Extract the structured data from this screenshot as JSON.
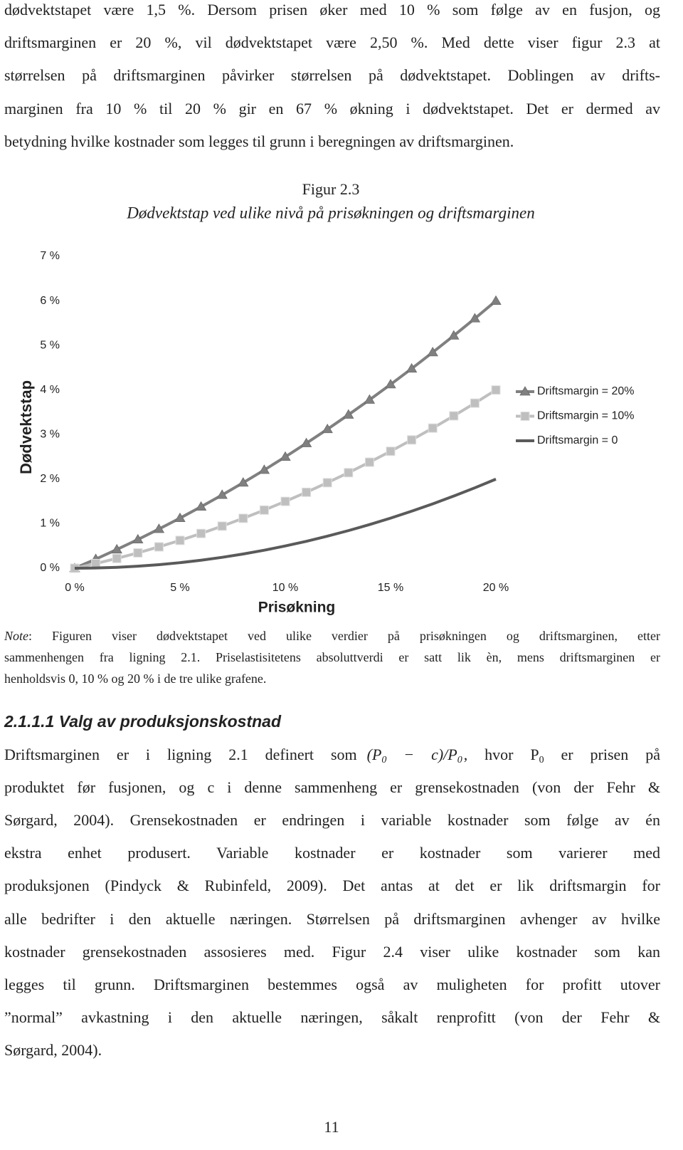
{
  "intro": {
    "lines": [
      "dødvektstapet være 1,5 %. Dersom prisen øker med 10 % som følge av en fusjon, og",
      "driftsmarginen er 20 %, vil dødvektstapet være 2,50 %. Med dette viser figur 2.3 at",
      "størrelsen på driftsmarginen påvirker størrelsen på dødvektstapet. Doblingen av drifts-",
      "marginen fra 10 % til 20 % gir en 67 % økning i dødvektstapet. Det er dermed av",
      "betydning hvilke kostnader som legges til grunn i beregningen av driftsmarginen."
    ]
  },
  "chart_data": {
    "type": "line",
    "label": "Figur 2.3",
    "title": "Dødvektstap ved ulike nivå på prisøkningen og driftsmarginen",
    "x_label": "Prisøkning",
    "y_label": "Dødvektstap",
    "x": [
      0,
      1,
      2,
      3,
      4,
      5,
      6,
      7,
      8,
      9,
      10,
      11,
      12,
      13,
      14,
      15,
      16,
      17,
      18,
      19,
      20
    ],
    "series": [
      {
        "name": "Driftsmargin = 20%",
        "color": "#808080",
        "marker": "triangle",
        "values": [
          0,
          0.205,
          0.42,
          0.645,
          0.88,
          1.125,
          1.38,
          1.645,
          1.92,
          2.205,
          2.5,
          2.805,
          3.12,
          3.445,
          3.78,
          4.125,
          4.48,
          4.845,
          5.22,
          5.605,
          6
        ]
      },
      {
        "name": "Driftsmargin = 10%",
        "color": "#bfbfbf",
        "marker": "square",
        "values": [
          0,
          0.105,
          0.22,
          0.345,
          0.48,
          0.625,
          0.78,
          0.945,
          1.12,
          1.305,
          1.5,
          1.705,
          1.92,
          2.145,
          2.38,
          2.625,
          2.88,
          3.145,
          3.42,
          3.705,
          4
        ]
      },
      {
        "name": "Driftsmargin = 0",
        "color": "#5a5a5a",
        "marker": "none",
        "values": [
          0,
          0.005,
          0.02,
          0.045,
          0.08,
          0.125,
          0.18,
          0.245,
          0.32,
          0.405,
          0.5,
          0.605,
          0.72,
          0.845,
          0.98,
          1.125,
          1.28,
          1.445,
          1.62,
          1.805,
          2
        ]
      }
    ],
    "xlim": [
      0,
      20
    ],
    "xticks": [
      {
        "value": 0,
        "label": "0 %"
      },
      {
        "value": 5,
        "label": "5 %"
      },
      {
        "value": 10,
        "label": "10 %"
      },
      {
        "value": 15,
        "label": "15 %"
      },
      {
        "value": 20,
        "label": "20 %"
      }
    ],
    "ylim": [
      0,
      7
    ],
    "yticks": [
      {
        "value": 0,
        "label": "0 %"
      },
      {
        "value": 1,
        "label": "1 %"
      },
      {
        "value": 2,
        "label": "2 %"
      },
      {
        "value": 3,
        "label": "3 %"
      },
      {
        "value": 4,
        "label": "4 %"
      },
      {
        "value": 5,
        "label": "5 %"
      },
      {
        "value": 6,
        "label": "6 %"
      },
      {
        "value": 7,
        "label": "7 %"
      }
    ],
    "grid": false,
    "legend": "right"
  },
  "note": {
    "label": "Note",
    "lines": [
      ": Figuren viser dødvektstapet ved ulike verdier på prisøkningen og driftsmarginen, etter",
      "sammenhengen fra ligning 2.1. Priselastisitetens absoluttverdi er satt lik èn, mens driftsmarginen er",
      "henholdsvis 0, 10 % og 20 % i de tre ulike grafene."
    ]
  },
  "heading": "2.1.1.1 Valg av produksjonskostnad",
  "body": {
    "first": {
      "pre": "Driftsmarginen er i ligning 2.1 definert som",
      "formula": [
        "(P",
        "0",
        " − c)/P",
        "0"
      ],
      "post": [
        ", hvor P",
        "0",
        " er prisen på"
      ]
    },
    "lines": [
      "produktet før fusjonen, og c i denne sammenheng er grensekostnaden (von der Fehr &",
      "Sørgard, 2004). Grensekostnaden er endringen i variable kostnader som følge av én",
      "ekstra enhet produsert. Variable kostnader er kostnader som varierer med",
      "produksjonen (Pindyck & Rubinfeld, 2009). Det antas at det er lik driftsmargin for",
      "alle bedrifter i den aktuelle næringen. Størrelsen på driftsmarginen avhenger av hvilke",
      "kostnader grensekostnaden assosieres med. Figur 2.4 viser ulike kostnader som kan",
      "legges til grunn. Driftsmarginen bestemmes også av muligheten for profitt utover",
      "”normal” avkastning i den aktuelle næringen, såkalt renprofitt (von der Fehr &",
      "Sørgard, 2004)."
    ]
  },
  "page_number": "11"
}
